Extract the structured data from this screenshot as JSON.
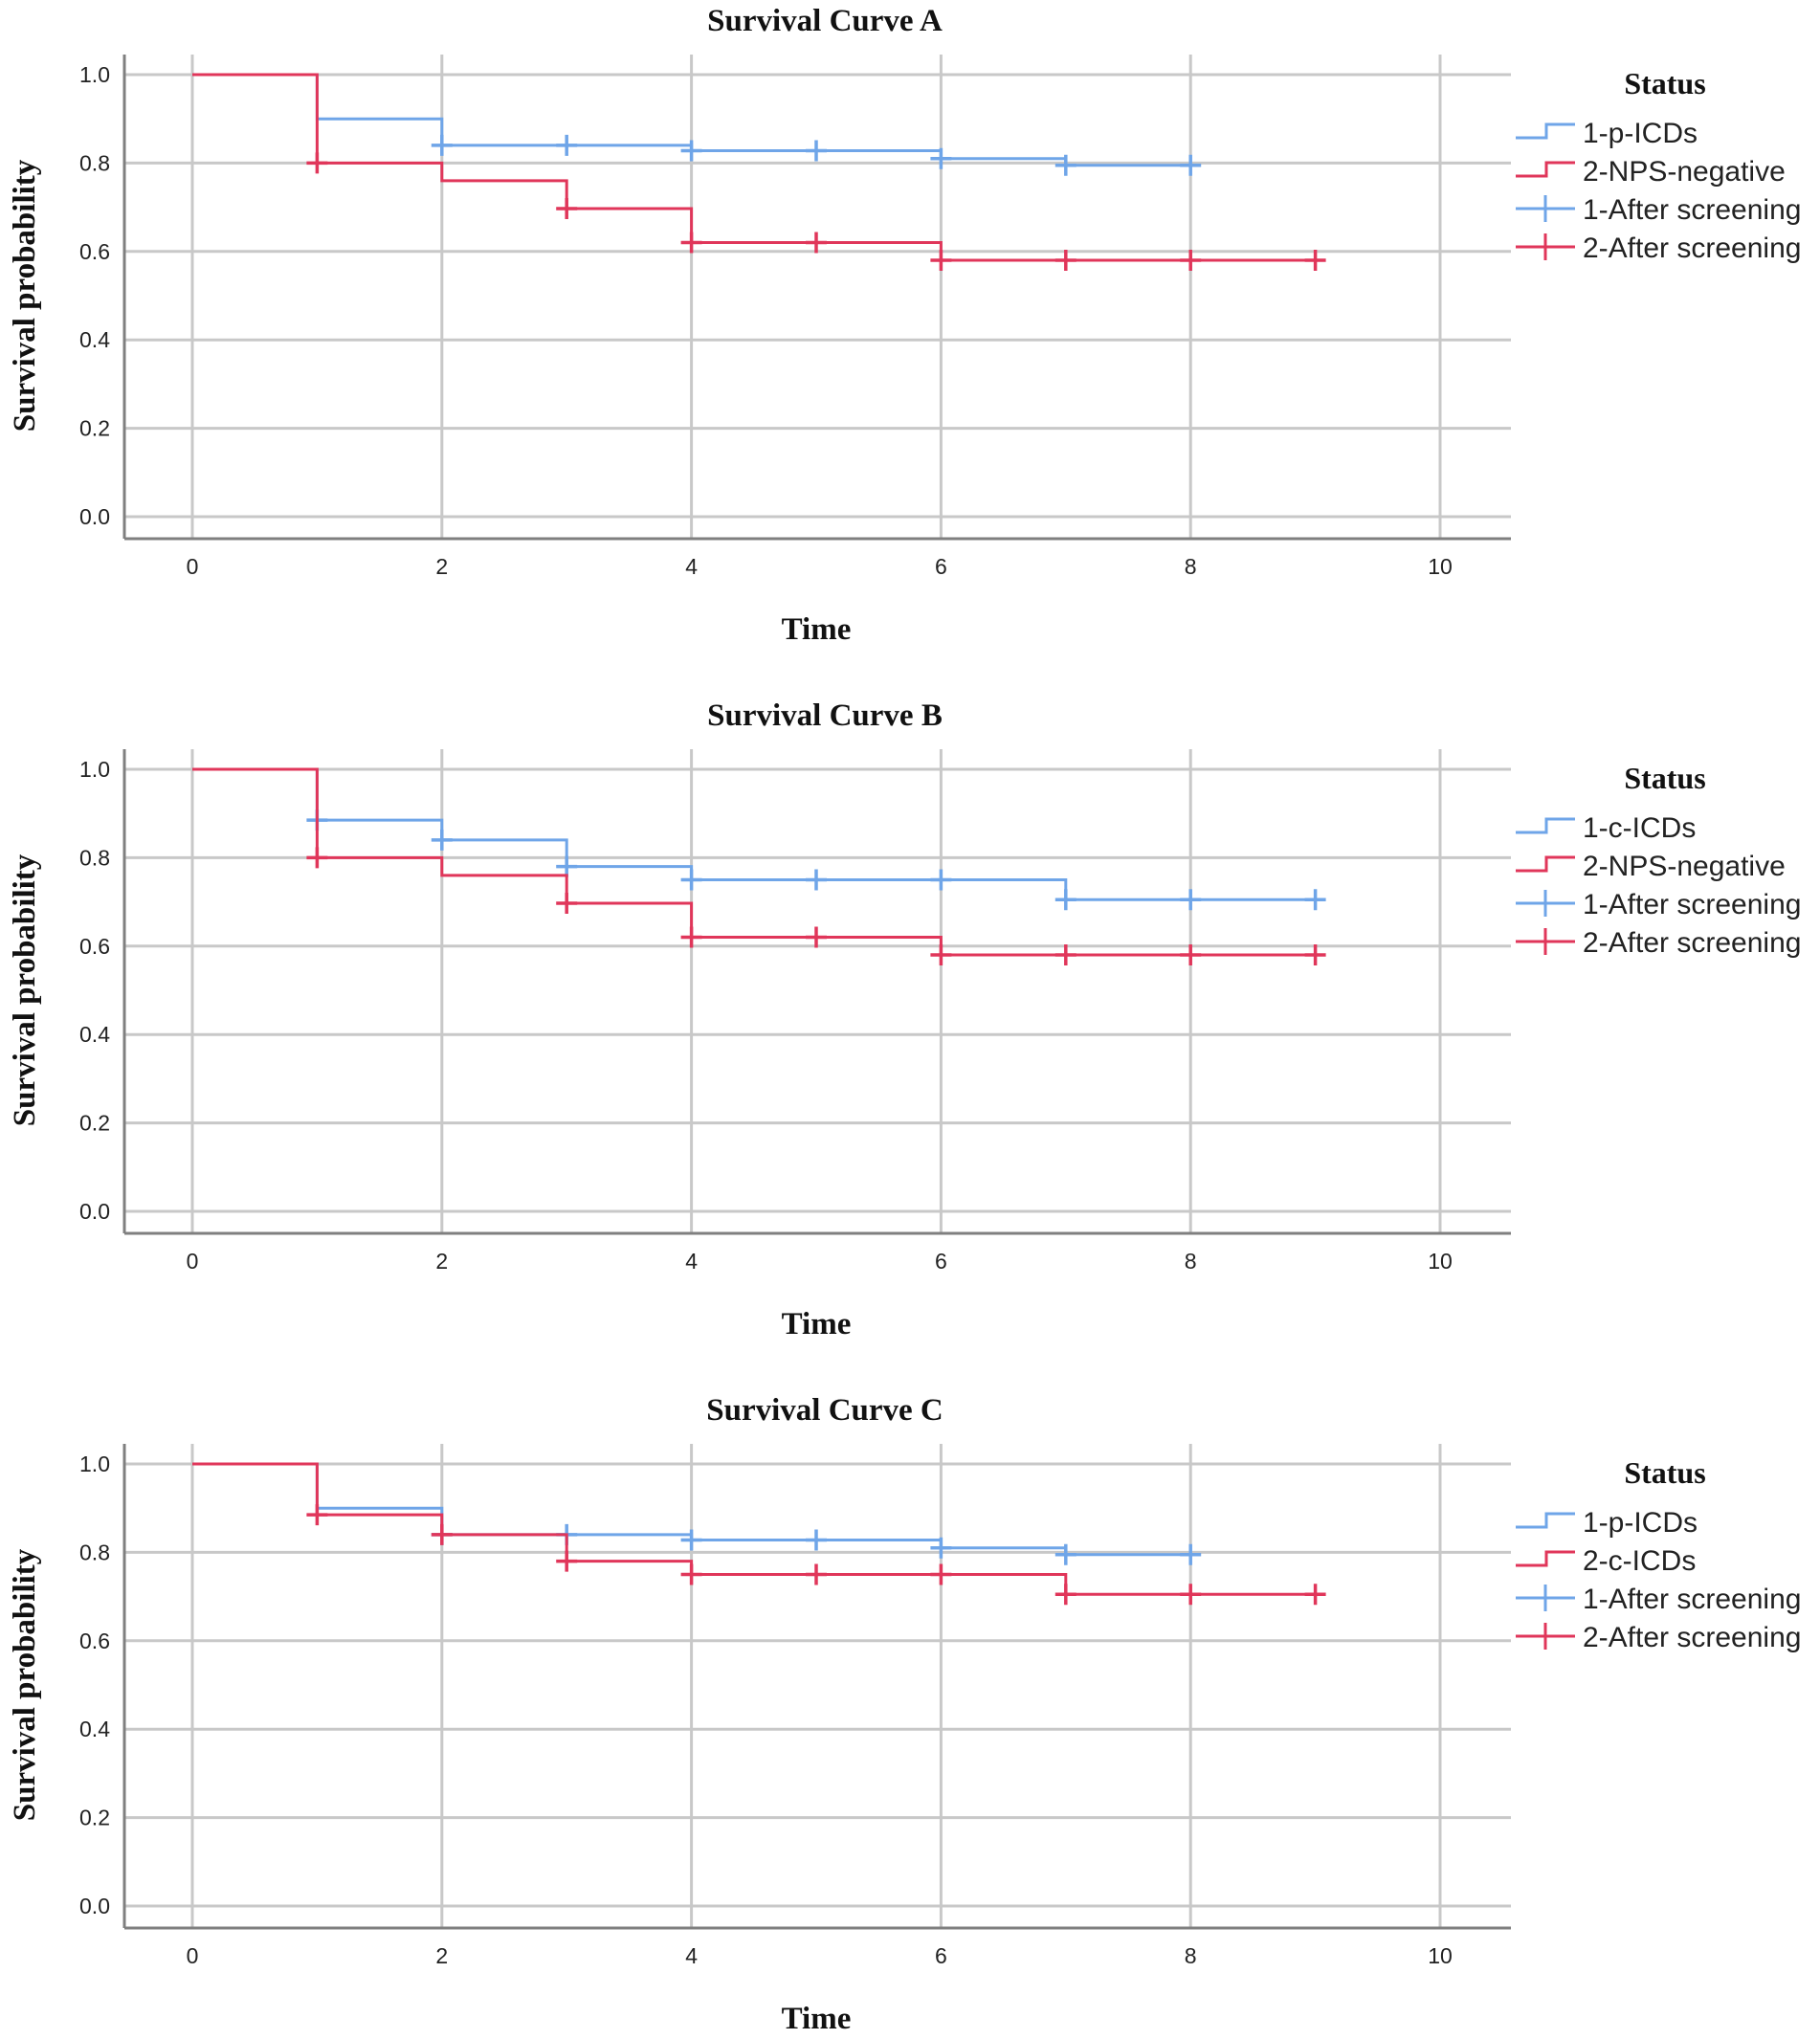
{
  "chart_data": [
    {
      "type": "line",
      "subtype": "kaplan-meier-step",
      "title": "Survival Curve A",
      "xlabel": "Time",
      "ylabel": "Survival probability",
      "xlim": [
        0,
        10
      ],
      "ylim": [
        0,
        1
      ],
      "xticks": [
        "0",
        "2",
        "4",
        "6",
        "8",
        "10"
      ],
      "yticks": [
        "0.0",
        "0.2",
        "0.4",
        "0.6",
        "0.8",
        "1.0"
      ],
      "grid": true,
      "legend_title": "Status",
      "legend_position": "right",
      "legend_entries": [
        {
          "label": "1-p-ICDs",
          "kind": "step",
          "color": "#6fa5e8"
        },
        {
          "label": "2-NPS-negative",
          "kind": "step",
          "color": "#e0365a"
        },
        {
          "label": "1-After screening",
          "kind": "censor",
          "color": "#6fa5e8"
        },
        {
          "label": "2-After screening",
          "kind": "censor",
          "color": "#e0365a"
        }
      ],
      "series": [
        {
          "name": "1-p-ICDs",
          "color": "#6fa5e8",
          "steps": [
            [
              0,
              1.0
            ],
            [
              1,
              0.9
            ],
            [
              2,
              0.84
            ],
            [
              4,
              0.828
            ],
            [
              6,
              0.81
            ],
            [
              7,
              0.795
            ],
            [
              8,
              0.795
            ]
          ],
          "censored": [
            [
              2,
              0.84
            ],
            [
              3,
              0.84
            ],
            [
              4,
              0.828
            ],
            [
              5,
              0.828
            ],
            [
              6,
              0.81
            ],
            [
              7,
              0.795
            ],
            [
              8,
              0.795
            ]
          ]
        },
        {
          "name": "2-NPS-negative",
          "color": "#e0365a",
          "steps": [
            [
              0,
              1.0
            ],
            [
              1,
              0.8
            ],
            [
              2,
              0.76
            ],
            [
              3,
              0.697
            ],
            [
              4,
              0.62
            ],
            [
              6,
              0.58
            ],
            [
              9,
              0.58
            ]
          ],
          "censored": [
            [
              1,
              0.8
            ],
            [
              3,
              0.697
            ],
            [
              4,
              0.62
            ],
            [
              5,
              0.62
            ],
            [
              6,
              0.58
            ],
            [
              7,
              0.58
            ],
            [
              8,
              0.58
            ],
            [
              9,
              0.58
            ]
          ]
        }
      ]
    },
    {
      "type": "line",
      "subtype": "kaplan-meier-step",
      "title": "Survival Curve B",
      "xlabel": "Time",
      "ylabel": "Survival probability",
      "xlim": [
        0,
        10
      ],
      "ylim": [
        0,
        1
      ],
      "xticks": [
        "0",
        "2",
        "4",
        "6",
        "8",
        "10"
      ],
      "yticks": [
        "0.0",
        "0.2",
        "0.4",
        "0.6",
        "0.8",
        "1.0"
      ],
      "grid": true,
      "legend_title": "Status",
      "legend_position": "right",
      "legend_entries": [
        {
          "label": "1-c-ICDs",
          "kind": "step",
          "color": "#6fa5e8"
        },
        {
          "label": "2-NPS-negative",
          "kind": "step",
          "color": "#e0365a"
        },
        {
          "label": "1-After screening",
          "kind": "censor",
          "color": "#6fa5e8"
        },
        {
          "label": "2-After screening",
          "kind": "censor",
          "color": "#e0365a"
        }
      ],
      "series": [
        {
          "name": "1-c-ICDs",
          "color": "#6fa5e8",
          "steps": [
            [
              0,
              1.0
            ],
            [
              1,
              0.885
            ],
            [
              2,
              0.84
            ],
            [
              3,
              0.78
            ],
            [
              4,
              0.75
            ],
            [
              7,
              0.705
            ],
            [
              9,
              0.705
            ]
          ],
          "censored": [
            [
              1,
              0.885
            ],
            [
              2,
              0.84
            ],
            [
              3,
              0.78
            ],
            [
              4,
              0.75
            ],
            [
              5,
              0.75
            ],
            [
              6,
              0.75
            ],
            [
              7,
              0.705
            ],
            [
              8,
              0.705
            ],
            [
              9,
              0.705
            ]
          ]
        },
        {
          "name": "2-NPS-negative",
          "color": "#e0365a",
          "steps": [
            [
              0,
              1.0
            ],
            [
              1,
              0.8
            ],
            [
              2,
              0.76
            ],
            [
              3,
              0.697
            ],
            [
              4,
              0.62
            ],
            [
              6,
              0.58
            ],
            [
              9,
              0.58
            ]
          ],
          "censored": [
            [
              1,
              0.8
            ],
            [
              3,
              0.697
            ],
            [
              4,
              0.62
            ],
            [
              5,
              0.62
            ],
            [
              6,
              0.58
            ],
            [
              7,
              0.58
            ],
            [
              8,
              0.58
            ],
            [
              9,
              0.58
            ]
          ]
        }
      ]
    },
    {
      "type": "line",
      "subtype": "kaplan-meier-step",
      "title": "Survival Curve C",
      "xlabel": "Time",
      "ylabel": "Survival probability",
      "xlim": [
        0,
        10
      ],
      "ylim": [
        0,
        1
      ],
      "xticks": [
        "0",
        "2",
        "4",
        "6",
        "8",
        "10"
      ],
      "yticks": [
        "0.0",
        "0.2",
        "0.4",
        "0.6",
        "0.8",
        "1.0"
      ],
      "grid": true,
      "legend_title": "Status",
      "legend_position": "right",
      "legend_entries": [
        {
          "label": "1-p-ICDs",
          "kind": "step",
          "color": "#6fa5e8"
        },
        {
          "label": "2-c-ICDs",
          "kind": "step",
          "color": "#e0365a"
        },
        {
          "label": "1-After screening",
          "kind": "censor",
          "color": "#6fa5e8"
        },
        {
          "label": "2-After screening",
          "kind": "censor",
          "color": "#e0365a"
        }
      ],
      "series": [
        {
          "name": "1-p-ICDs",
          "color": "#6fa5e8",
          "steps": [
            [
              0,
              1.0
            ],
            [
              1,
              0.9
            ],
            [
              2,
              0.84
            ],
            [
              4,
              0.828
            ],
            [
              6,
              0.81
            ],
            [
              7,
              0.795
            ],
            [
              8,
              0.795
            ]
          ],
          "censored": [
            [
              2,
              0.84
            ],
            [
              3,
              0.84
            ],
            [
              4,
              0.828
            ],
            [
              5,
              0.828
            ],
            [
              6,
              0.81
            ],
            [
              7,
              0.795
            ],
            [
              8,
              0.795
            ]
          ]
        },
        {
          "name": "2-c-ICDs",
          "color": "#e0365a",
          "steps": [
            [
              0,
              1.0
            ],
            [
              1,
              0.885
            ],
            [
              2,
              0.84
            ],
            [
              3,
              0.78
            ],
            [
              4,
              0.75
            ],
            [
              7,
              0.705
            ],
            [
              9,
              0.705
            ]
          ],
          "censored": [
            [
              1,
              0.885
            ],
            [
              2,
              0.84
            ],
            [
              3,
              0.78
            ],
            [
              4,
              0.75
            ],
            [
              5,
              0.75
            ],
            [
              6,
              0.75
            ],
            [
              7,
              0.705
            ],
            [
              8,
              0.705
            ],
            [
              9,
              0.705
            ]
          ]
        }
      ]
    }
  ]
}
